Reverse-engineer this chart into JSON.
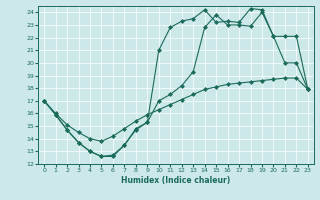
{
  "xlabel": "Humidex (Indice chaleur)",
  "xlim": [
    -0.5,
    23.5
  ],
  "ylim": [
    12,
    24.5
  ],
  "xticks": [
    0,
    1,
    2,
    3,
    4,
    5,
    6,
    7,
    8,
    9,
    10,
    11,
    12,
    13,
    14,
    15,
    16,
    17,
    18,
    19,
    20,
    21,
    22,
    23
  ],
  "yticks": [
    12,
    13,
    14,
    15,
    16,
    17,
    18,
    19,
    20,
    21,
    22,
    23,
    24
  ],
  "background_color": "#cce8e8",
  "line_color": "#1a6b5a",
  "line1_x": [
    0,
    1,
    2,
    3,
    4,
    5,
    6,
    7,
    8,
    9,
    10,
    11,
    12,
    13,
    14,
    15,
    16,
    17,
    18,
    19,
    20,
    21,
    22,
    23
  ],
  "line1_y": [
    17.0,
    15.9,
    14.7,
    13.7,
    13.0,
    12.6,
    12.6,
    13.5,
    14.7,
    15.3,
    21.0,
    22.8,
    23.3,
    23.5,
    24.2,
    23.2,
    23.3,
    23.2,
    24.3,
    24.2,
    22.1,
    20.0,
    20.0,
    17.9
  ],
  "line2_x": [
    0,
    1,
    2,
    3,
    4,
    5,
    6,
    7,
    8,
    9,
    10,
    11,
    12,
    13,
    14,
    15,
    16,
    17,
    18,
    19,
    20,
    21,
    22,
    23
  ],
  "line2_y": [
    17.0,
    15.9,
    14.7,
    13.7,
    13.0,
    12.6,
    12.7,
    13.5,
    14.8,
    15.3,
    17.0,
    17.5,
    18.2,
    19.3,
    22.8,
    23.8,
    23.0,
    23.0,
    22.9,
    24.0,
    22.1,
    22.1,
    22.1,
    17.9
  ],
  "line3_x": [
    0,
    1,
    2,
    3,
    4,
    5,
    6,
    7,
    8,
    9,
    10,
    11,
    12,
    13,
    14,
    15,
    16,
    17,
    18,
    19,
    20,
    21,
    22,
    23
  ],
  "line3_y": [
    17.0,
    16.0,
    15.1,
    14.5,
    14.0,
    13.8,
    14.2,
    14.8,
    15.4,
    15.9,
    16.3,
    16.7,
    17.1,
    17.5,
    17.9,
    18.1,
    18.3,
    18.4,
    18.5,
    18.6,
    18.7,
    18.8,
    18.8,
    17.9
  ]
}
